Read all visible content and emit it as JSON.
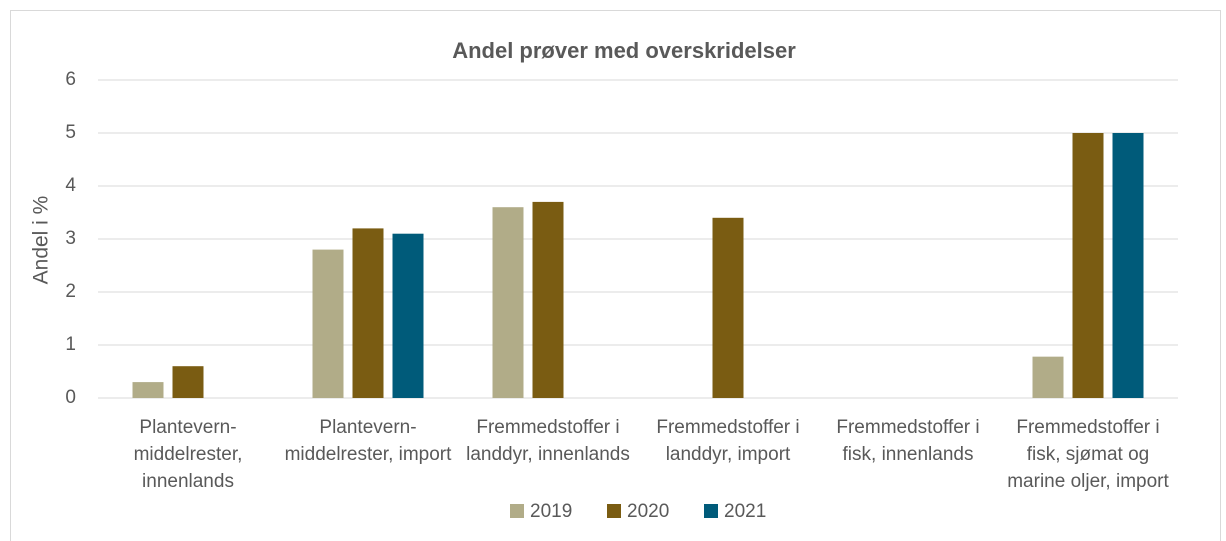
{
  "chart_data": {
    "type": "bar",
    "title": "Andel prøver med overskridelser",
    "y_label": "Andel i %",
    "categories": [
      "Plantevern-middelrester, innenlands",
      "Plantevern-middelrester, import",
      "Fremmedstoffer i landdyr, innenlands",
      "Fremmedstoffer i landdyr, import",
      "Fremmedstoffer i fisk, innenlands",
      "Fremmedstoffer i fisk, sjømat og marine oljer, import"
    ],
    "series": [
      {
        "name": "2019",
        "color": "#b1ac88",
        "values": [
          0.3,
          2.8,
          3.6,
          null,
          null,
          0.78
        ]
      },
      {
        "name": "2020",
        "color": "#7a5c12",
        "values": [
          0.6,
          3.2,
          3.7,
          3.4,
          null,
          5
        ]
      },
      {
        "name": "2021",
        "color": "#005b7a",
        "values": [
          null,
          3.1,
          null,
          null,
          null,
          5
        ]
      }
    ],
    "ylim": [
      0,
      6
    ],
    "yticks": [
      0,
      1,
      2,
      3,
      4,
      5,
      6
    ],
    "grid": true,
    "legend": "bottom"
  }
}
